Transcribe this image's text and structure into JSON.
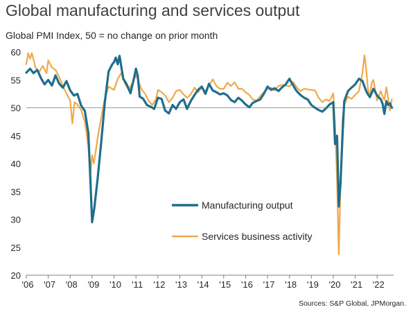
{
  "title": "Global manufacturing and services output",
  "subtitle": "Global PMI Index, 50 = no change on prior month",
  "source": "Sources: S&P Global, JPMorgan.",
  "colors": {
    "manufacturing": "#1f6e8c",
    "services": "#f0a848",
    "axis": "#808080",
    "reference": "#9a9a9a"
  },
  "chart_data": {
    "type": "line",
    "title": "Global manufacturing and services output",
    "subtitle": "Global PMI Index, 50 = no change on prior month",
    "ylim": [
      20,
      60
    ],
    "yticks": [
      20,
      25,
      30,
      35,
      40,
      45,
      50,
      55,
      60
    ],
    "x_range": [
      2006.0,
      2022.75
    ],
    "xtick_labels": [
      "'06",
      "'07",
      "'08",
      "'09",
      "'10",
      "'11",
      "'12",
      "'13",
      "'14",
      "'15",
      "'16",
      "'17",
      "'18",
      "'19",
      "'20",
      "'21",
      "'22"
    ],
    "xtick_values": [
      2006,
      2007,
      2008,
      2009,
      2010,
      2011,
      2012,
      2013,
      2014,
      2015,
      2016,
      2017,
      2018,
      2019,
      2020,
      2021,
      2022
    ],
    "reference_line": 50,
    "legend_placement": "center-right",
    "series": [
      {
        "name": "Manufacturing output",
        "points": [
          [
            2006.0,
            56.3
          ],
          [
            2006.17,
            57.0
          ],
          [
            2006.33,
            56.2
          ],
          [
            2006.5,
            56.8
          ],
          [
            2006.67,
            55.3
          ],
          [
            2006.83,
            54.2
          ],
          [
            2007.0,
            55.0
          ],
          [
            2007.17,
            54.0
          ],
          [
            2007.33,
            55.8
          ],
          [
            2007.5,
            54.3
          ],
          [
            2007.67,
            53.6
          ],
          [
            2007.83,
            54.8
          ],
          [
            2008.0,
            53.1
          ],
          [
            2008.17,
            52.2
          ],
          [
            2008.33,
            52.5
          ],
          [
            2008.5,
            50.4
          ],
          [
            2008.67,
            49.4
          ],
          [
            2008.83,
            45.5
          ],
          [
            2008.92,
            37.2
          ],
          [
            2009.0,
            29.5
          ],
          [
            2009.1,
            32.0
          ],
          [
            2009.25,
            37.2
          ],
          [
            2009.42,
            44.0
          ],
          [
            2009.58,
            51.0
          ],
          [
            2009.75,
            56.5
          ],
          [
            2009.92,
            57.8
          ],
          [
            2010.0,
            58.2
          ],
          [
            2010.08,
            59.0
          ],
          [
            2010.17,
            57.8
          ],
          [
            2010.25,
            59.3
          ],
          [
            2010.42,
            55.2
          ],
          [
            2010.58,
            54.2
          ],
          [
            2010.75,
            52.6
          ],
          [
            2010.92,
            55.5
          ],
          [
            2011.0,
            57.0
          ],
          [
            2011.08,
            55.8
          ],
          [
            2011.17,
            52.0
          ],
          [
            2011.33,
            51.6
          ],
          [
            2011.5,
            50.5
          ],
          [
            2011.67,
            50.2
          ],
          [
            2011.83,
            49.8
          ],
          [
            2012.0,
            51.8
          ],
          [
            2012.17,
            51.6
          ],
          [
            2012.33,
            49.5
          ],
          [
            2012.5,
            49.0
          ],
          [
            2012.67,
            50.5
          ],
          [
            2012.83,
            49.8
          ],
          [
            2013.0,
            51.0
          ],
          [
            2013.17,
            51.5
          ],
          [
            2013.33,
            49.8
          ],
          [
            2013.5,
            51.2
          ],
          [
            2013.67,
            52.3
          ],
          [
            2013.83,
            53.2
          ],
          [
            2014.0,
            53.8
          ],
          [
            2014.17,
            52.5
          ],
          [
            2014.33,
            54.3
          ],
          [
            2014.5,
            53.1
          ],
          [
            2014.67,
            52.8
          ],
          [
            2014.83,
            52.4
          ],
          [
            2015.0,
            52.6
          ],
          [
            2015.17,
            52.2
          ],
          [
            2015.33,
            51.4
          ],
          [
            2015.5,
            51.0
          ],
          [
            2015.67,
            51.8
          ],
          [
            2015.83,
            51.3
          ],
          [
            2016.0,
            50.6
          ],
          [
            2016.17,
            50.1
          ],
          [
            2016.33,
            50.9
          ],
          [
            2016.5,
            51.2
          ],
          [
            2016.67,
            51.5
          ],
          [
            2016.83,
            52.5
          ],
          [
            2017.0,
            53.8
          ],
          [
            2017.17,
            53.2
          ],
          [
            2017.33,
            53.5
          ],
          [
            2017.5,
            53.0
          ],
          [
            2017.67,
            53.7
          ],
          [
            2017.83,
            54.2
          ],
          [
            2018.0,
            55.2
          ],
          [
            2018.17,
            54.0
          ],
          [
            2018.33,
            53.0
          ],
          [
            2018.5,
            52.3
          ],
          [
            2018.67,
            51.8
          ],
          [
            2018.83,
            51.5
          ],
          [
            2019.0,
            50.5
          ],
          [
            2019.17,
            50.0
          ],
          [
            2019.33,
            49.6
          ],
          [
            2019.5,
            49.3
          ],
          [
            2019.67,
            49.9
          ],
          [
            2019.83,
            50.6
          ],
          [
            2020.0,
            51.0
          ],
          [
            2020.08,
            43.5
          ],
          [
            2020.17,
            45.0
          ],
          [
            2020.25,
            32.3
          ],
          [
            2020.33,
            36.5
          ],
          [
            2020.42,
            45.0
          ],
          [
            2020.5,
            51.2
          ],
          [
            2020.67,
            53.0
          ],
          [
            2020.83,
            53.6
          ],
          [
            2021.0,
            54.2
          ],
          [
            2021.17,
            55.2
          ],
          [
            2021.33,
            54.8
          ],
          [
            2021.5,
            53.0
          ],
          [
            2021.58,
            52.4
          ],
          [
            2021.67,
            51.9
          ],
          [
            2021.83,
            53.4
          ],
          [
            2022.0,
            52.2
          ],
          [
            2022.17,
            51.5
          ],
          [
            2022.25,
            50.7
          ],
          [
            2022.33,
            48.9
          ],
          [
            2022.42,
            51.2
          ],
          [
            2022.5,
            50.5
          ],
          [
            2022.58,
            50.8
          ],
          [
            2022.67,
            50.0
          ]
        ]
      },
      {
        "name": "Services business activity",
        "points": [
          [
            2006.0,
            57.8
          ],
          [
            2006.08,
            59.8
          ],
          [
            2006.17,
            58.8
          ],
          [
            2006.25,
            59.8
          ],
          [
            2006.42,
            57.2
          ],
          [
            2006.58,
            56.4
          ],
          [
            2006.75,
            57.5
          ],
          [
            2006.92,
            56.2
          ],
          [
            2007.0,
            58.5
          ],
          [
            2007.17,
            57.2
          ],
          [
            2007.33,
            56.8
          ],
          [
            2007.5,
            55.5
          ],
          [
            2007.67,
            53.8
          ],
          [
            2007.83,
            52.6
          ],
          [
            2008.0,
            51.3
          ],
          [
            2008.1,
            47.2
          ],
          [
            2008.2,
            51.0
          ],
          [
            2008.33,
            50.6
          ],
          [
            2008.5,
            49.6
          ],
          [
            2008.67,
            47.5
          ],
          [
            2008.83,
            43.0
          ],
          [
            2008.92,
            37.7
          ],
          [
            2009.0,
            41.5
          ],
          [
            2009.08,
            40.0
          ],
          [
            2009.25,
            44.5
          ],
          [
            2009.42,
            48.3
          ],
          [
            2009.58,
            51.7
          ],
          [
            2009.75,
            53.8
          ],
          [
            2010.0,
            53.2
          ],
          [
            2010.17,
            55.2
          ],
          [
            2010.33,
            56.2
          ],
          [
            2010.5,
            54.3
          ],
          [
            2010.67,
            53.2
          ],
          [
            2010.83,
            54.4
          ],
          [
            2011.0,
            55.8
          ],
          [
            2011.08,
            55.2
          ],
          [
            2011.25,
            53.3
          ],
          [
            2011.42,
            52.5
          ],
          [
            2011.58,
            51.2
          ],
          [
            2011.75,
            50.5
          ],
          [
            2011.92,
            51.6
          ],
          [
            2012.0,
            53.2
          ],
          [
            2012.17,
            52.8
          ],
          [
            2012.33,
            52.2
          ],
          [
            2012.5,
            51.0
          ],
          [
            2012.67,
            51.8
          ],
          [
            2012.83,
            53.0
          ],
          [
            2013.0,
            53.2
          ],
          [
            2013.17,
            52.4
          ],
          [
            2013.33,
            51.8
          ],
          [
            2013.5,
            52.4
          ],
          [
            2013.67,
            53.6
          ],
          [
            2013.83,
            52.8
          ],
          [
            2014.0,
            53.6
          ],
          [
            2014.17,
            53.0
          ],
          [
            2014.33,
            54.0
          ],
          [
            2014.5,
            55.1
          ],
          [
            2014.67,
            53.9
          ],
          [
            2014.83,
            53.4
          ],
          [
            2015.0,
            53.4
          ],
          [
            2015.17,
            54.5
          ],
          [
            2015.33,
            53.9
          ],
          [
            2015.5,
            54.6
          ],
          [
            2015.67,
            53.4
          ],
          [
            2015.83,
            53.4
          ],
          [
            2016.0,
            52.8
          ],
          [
            2016.17,
            52.3
          ],
          [
            2016.33,
            51.5
          ],
          [
            2016.5,
            51.3
          ],
          [
            2016.67,
            52.1
          ],
          [
            2016.83,
            52.8
          ],
          [
            2017.0,
            53.4
          ],
          [
            2017.17,
            53.6
          ],
          [
            2017.33,
            53.1
          ],
          [
            2017.5,
            53.9
          ],
          [
            2017.67,
            54.1
          ],
          [
            2017.83,
            54.0
          ],
          [
            2018.0,
            53.8
          ],
          [
            2018.17,
            54.6
          ],
          [
            2018.33,
            53.7
          ],
          [
            2018.5,
            53.0
          ],
          [
            2018.67,
            53.4
          ],
          [
            2018.83,
            53.3
          ],
          [
            2019.0,
            53.2
          ],
          [
            2019.17,
            53.1
          ],
          [
            2019.33,
            51.8
          ],
          [
            2019.5,
            51.0
          ],
          [
            2019.67,
            51.5
          ],
          [
            2019.83,
            51.2
          ],
          [
            2020.0,
            52.6
          ],
          [
            2020.08,
            47.0
          ],
          [
            2020.17,
            37.0
          ],
          [
            2020.25,
            23.7
          ],
          [
            2020.33,
            36.0
          ],
          [
            2020.42,
            48.0
          ],
          [
            2020.5,
            50.5
          ],
          [
            2020.67,
            52.0
          ],
          [
            2020.83,
            51.6
          ],
          [
            2021.0,
            52.3
          ],
          [
            2021.17,
            53.0
          ],
          [
            2021.33,
            56.3
          ],
          [
            2021.42,
            59.4
          ],
          [
            2021.5,
            57.0
          ],
          [
            2021.58,
            53.3
          ],
          [
            2021.67,
            52.0
          ],
          [
            2021.75,
            54.5
          ],
          [
            2021.83,
            55.0
          ],
          [
            2022.0,
            51.3
          ],
          [
            2022.17,
            53.0
          ],
          [
            2022.25,
            52.0
          ],
          [
            2022.33,
            51.4
          ],
          [
            2022.42,
            53.7
          ],
          [
            2022.5,
            51.8
          ],
          [
            2022.58,
            49.5
          ],
          [
            2022.67,
            51.5
          ]
        ]
      }
    ]
  }
}
